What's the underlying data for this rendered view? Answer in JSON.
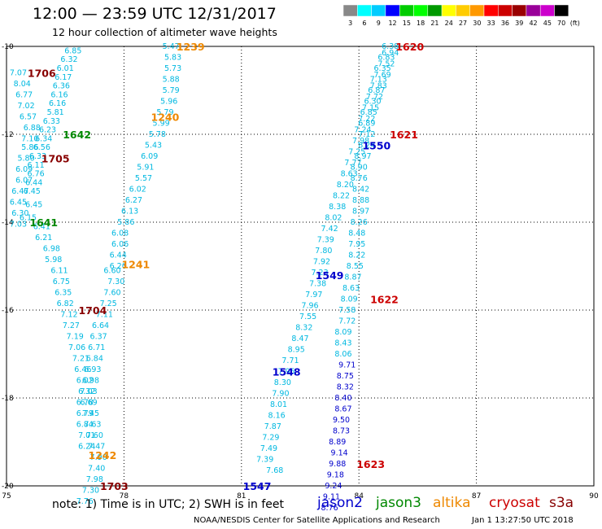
{
  "title": "12:00 — 23:59 UTC 12/31/2017",
  "subtitle": "12 hour collection of altimeter wave heights",
  "note": "note:  1) Time is in UTC;  2) SWH is in feet",
  "credit": "NOAA/NESDIS Center for Satellite Applications and Research",
  "timestamp": "Jan  1 13:27:50 UTC 2018",
  "missions": [
    {
      "name": "jason2",
      "color": "#0000cc"
    },
    {
      "name": "jason3",
      "color": "#008800"
    },
    {
      "name": "altika",
      "color": "#ee8800"
    },
    {
      "name": "cryosat",
      "color": "#cc0000"
    },
    {
      "name": "s3a",
      "color": "#880000"
    }
  ],
  "chart_data": {
    "type": "scatter",
    "xlim": [
      75,
      90
    ],
    "ylim": [
      -20,
      -10
    ],
    "x_ticks": [
      75,
      78,
      81,
      84,
      87,
      90
    ],
    "y_ticks": [
      -10,
      -12,
      -14,
      -16,
      -18,
      -20
    ],
    "x_tick_labels": [
      "75",
      "78",
      "81",
      "84",
      "87",
      "90"
    ],
    "y_tick_labels": [
      "-10",
      "-12",
      "-14",
      "-16",
      "-18",
      "-20"
    ],
    "color_scale": {
      "unit": "(ft)",
      "labels": [
        "3",
        "6",
        "9",
        "12",
        "15",
        "18",
        "21",
        "24",
        "27",
        "30",
        "33",
        "36",
        "39",
        "42",
        "45",
        "70"
      ],
      "colors": [
        "#888888",
        "#00ffff",
        "#00ccff",
        "#0000ff",
        "#00cc00",
        "#00ff00",
        "#009900",
        "#ffff00",
        "#ffcc00",
        "#ff9900",
        "#ff0000",
        "#cc0000",
        "#990000",
        "#990099",
        "#cc00cc",
        "#000000"
      ]
    },
    "series": [
      {
        "color": "#00b8e0",
        "points": [
          [
            76.7,
            -10.1,
            "6.85"
          ],
          [
            76.6,
            -10.3,
            "6.32"
          ],
          [
            76.5,
            -10.5,
            "6.01"
          ],
          [
            76.45,
            -10.7,
            "6.17"
          ],
          [
            76.4,
            -10.9,
            "6.36"
          ],
          [
            76.35,
            -11.1,
            "6.16"
          ],
          [
            76.3,
            -11.3,
            "6.16"
          ],
          [
            76.25,
            -11.5,
            "5.81"
          ],
          [
            76.15,
            -11.7,
            "6.33"
          ],
          [
            76.05,
            -11.9,
            "6.23"
          ],
          [
            75.95,
            -12.1,
            "6.34"
          ],
          [
            75.9,
            -12.3,
            "6.56"
          ],
          [
            75.8,
            -12.5,
            "6.33"
          ],
          [
            75.75,
            -12.7,
            "6.11"
          ],
          [
            75.75,
            -12.9,
            "6.76"
          ],
          [
            75.7,
            -13.1,
            "6.44"
          ],
          [
            75.65,
            -13.3,
            "6.45"
          ],
          [
            75.7,
            -13.6,
            "6.45"
          ],
          [
            75.55,
            -13.9,
            "6.15"
          ]
        ]
      },
      {
        "color": "#00b8e0",
        "points": [
          [
            75.3,
            -10.6,
            "7.07"
          ],
          [
            75.4,
            -10.85,
            "8.04"
          ],
          [
            75.45,
            -11.1,
            "6.77"
          ],
          [
            75.5,
            -11.35,
            "7.02"
          ],
          [
            75.55,
            -11.6,
            "6.57"
          ],
          [
            75.65,
            -11.85,
            "6.88"
          ],
          [
            75.6,
            -12.1,
            "7.10"
          ],
          [
            75.6,
            -12.3,
            "5.86"
          ],
          [
            75.5,
            -12.55,
            "5.80"
          ],
          [
            75.45,
            -12.8,
            "6.09"
          ],
          [
            75.45,
            -13.05,
            "6.07"
          ],
          [
            75.35,
            -13.3,
            "6.47"
          ],
          [
            75.3,
            -13.55,
            "6.45"
          ],
          [
            75.35,
            -13.8,
            "6.30"
          ],
          [
            75.3,
            -14.05,
            "7.03"
          ]
        ]
      },
      {
        "color": "#00b8e0",
        "points": [
          [
            75.9,
            -14.1,
            "6.41"
          ],
          [
            75.95,
            -14.35,
            "6.21"
          ],
          [
            76.15,
            -14.6,
            "6.98"
          ],
          [
            76.2,
            -14.85,
            "5.98"
          ],
          [
            76.35,
            -15.1,
            "6.11"
          ],
          [
            76.4,
            -15.35,
            "6.75"
          ],
          [
            76.45,
            -15.6,
            "6.35"
          ],
          [
            76.5,
            -15.85,
            "6.82"
          ],
          [
            76.6,
            -16.1,
            "7.12"
          ],
          [
            76.65,
            -16.35,
            "7.27"
          ],
          [
            76.75,
            -16.6,
            "7.19"
          ],
          [
            76.8,
            -16.85,
            "7.06"
          ],
          [
            76.9,
            -17.1,
            "7.21"
          ],
          [
            76.95,
            -17.35,
            "6.46"
          ],
          [
            77.0,
            -17.6,
            "6.02"
          ],
          [
            77.05,
            -17.85,
            "6.32"
          ],
          [
            77.1,
            -18.1,
            "6.69"
          ],
          [
            77.15,
            -18.35,
            "7.45"
          ],
          [
            77.2,
            -18.6,
            "7.63"
          ],
          [
            77.25,
            -18.85,
            "7.60"
          ],
          [
            77.3,
            -19.1,
            "7.47"
          ],
          [
            77.35,
            -19.35,
            "7.90"
          ],
          [
            77.3,
            -19.6,
            "7.40"
          ],
          [
            77.25,
            -19.85,
            "7.98"
          ],
          [
            77.15,
            -20.1,
            "7.30"
          ],
          [
            77.0,
            -20.35,
            "7.76"
          ]
        ]
      },
      {
        "color": "#00b8e0",
        "points": [
          [
            77.7,
            -15.1,
            "6.60"
          ],
          [
            77.8,
            -15.35,
            "7.30"
          ],
          [
            77.7,
            -15.6,
            "7.60"
          ],
          [
            77.6,
            -15.85,
            "7.25"
          ],
          [
            77.5,
            -16.1,
            "7.11"
          ],
          [
            77.4,
            -16.35,
            "6.64"
          ],
          [
            77.35,
            -16.6,
            "6.37"
          ],
          [
            77.3,
            -16.85,
            "6.71"
          ],
          [
            77.25,
            -17.1,
            "6.84"
          ],
          [
            77.2,
            -17.35,
            "6.93"
          ],
          [
            77.15,
            -17.6,
            "6.98"
          ],
          [
            77.1,
            -17.85,
            "7.03"
          ],
          [
            77.0,
            -18.1,
            "6.78"
          ],
          [
            77.0,
            -18.35,
            "6.79"
          ],
          [
            77.0,
            -18.6,
            "6.84"
          ],
          [
            77.05,
            -18.85,
            "7.01"
          ],
          [
            77.05,
            -19.1,
            "6.24"
          ]
        ]
      },
      {
        "color": "#00b8e0",
        "points": [
          [
            79.2,
            -10.0,
            "5.47"
          ],
          [
            79.25,
            -10.25,
            "5.83"
          ],
          [
            79.25,
            -10.5,
            "5.73"
          ],
          [
            79.2,
            -10.75,
            "5.88"
          ],
          [
            79.2,
            -11.0,
            "5.79"
          ],
          [
            79.15,
            -11.25,
            "5.96"
          ],
          [
            79.05,
            -11.5,
            "5.79"
          ],
          [
            78.95,
            -11.75,
            "5.99"
          ],
          [
            78.85,
            -12.0,
            "5.78"
          ],
          [
            78.75,
            -12.25,
            "5.43"
          ],
          [
            78.65,
            -12.5,
            "6.09"
          ],
          [
            78.55,
            -12.75,
            "5.91"
          ],
          [
            78.5,
            -13.0,
            "5.57"
          ],
          [
            78.35,
            -13.25,
            "6.02"
          ],
          [
            78.25,
            -13.5,
            "6.27"
          ],
          [
            78.15,
            -13.75,
            "6.13"
          ],
          [
            78.05,
            -14.0,
            "5.86"
          ],
          [
            77.9,
            -14.25,
            "6.08"
          ],
          [
            77.9,
            -14.5,
            "6.06"
          ],
          [
            77.85,
            -14.75,
            "6.44"
          ],
          [
            77.85,
            -15.0,
            "6.20"
          ]
        ]
      },
      {
        "color": "#00b8e0",
        "points": [
          [
            81.85,
            -19.65,
            "7.68"
          ],
          [
            81.6,
            -19.4,
            "7.39"
          ],
          [
            81.7,
            -19.15,
            "7.49"
          ],
          [
            81.75,
            -18.9,
            "7.29"
          ],
          [
            81.8,
            -18.65,
            "7.87"
          ],
          [
            81.9,
            -18.4,
            "8.16"
          ],
          [
            81.95,
            -18.15,
            "8.01"
          ],
          [
            82.0,
            -17.9,
            "7.90"
          ],
          [
            82.05,
            -17.65,
            "8.30"
          ],
          [
            82.15,
            -17.4,
            "7.95"
          ],
          [
            82.25,
            -17.15,
            "7.71"
          ],
          [
            82.4,
            -16.9,
            "8.95"
          ],
          [
            82.5,
            -16.65,
            "8.47"
          ],
          [
            82.6,
            -16.4,
            "8.32"
          ],
          [
            82.7,
            -16.15,
            "7.55"
          ],
          [
            82.75,
            -15.9,
            "7.96"
          ],
          [
            82.85,
            -15.65,
            "7.97"
          ],
          [
            82.95,
            -15.4,
            "7.38"
          ],
          [
            83.0,
            -15.15,
            "7.23"
          ],
          [
            83.05,
            -14.9,
            "7.92"
          ],
          [
            83.1,
            -14.65,
            "7.80"
          ],
          [
            83.15,
            -14.4,
            "7.39"
          ],
          [
            83.25,
            -14.15,
            "7.42"
          ],
          [
            83.35,
            -13.9,
            "8.02"
          ],
          [
            83.45,
            -13.65,
            "8.38"
          ],
          [
            83.55,
            -13.4,
            "8.22"
          ],
          [
            83.65,
            -13.15,
            "8.20"
          ],
          [
            83.75,
            -12.9,
            "8.63"
          ],
          [
            83.85,
            -12.65,
            "7.77"
          ],
          [
            83.95,
            -12.4,
            "7.25"
          ],
          [
            84.05,
            -12.15,
            "7.98"
          ],
          [
            84.1,
            -11.9,
            "7.24"
          ],
          [
            84.2,
            -11.65,
            "7.22"
          ],
          [
            84.3,
            -11.4,
            "7.15"
          ],
          [
            84.4,
            -11.15,
            "7.72"
          ],
          [
            84.5,
            -10.9,
            "7.83"
          ],
          [
            84.6,
            -10.65,
            "7.69"
          ],
          [
            84.7,
            -10.4,
            "7.52"
          ],
          [
            84.8,
            -10.15,
            "6.94"
          ]
        ]
      },
      {
        "color": "#00b8e0",
        "points": [
          [
            84.8,
            -10.0,
            "6.38"
          ],
          [
            84.7,
            -10.25,
            "6.83"
          ],
          [
            84.6,
            -10.5,
            "6.35"
          ],
          [
            84.5,
            -10.75,
            "7.13"
          ],
          [
            84.45,
            -11.0,
            "6.87"
          ],
          [
            84.35,
            -11.25,
            "6.30"
          ],
          [
            84.25,
            -11.5,
            "6.85"
          ],
          [
            84.2,
            -11.75,
            "6.89"
          ],
          [
            84.2,
            -12.0,
            "7.12"
          ],
          [
            84.2,
            -12.25,
            "8.24"
          ],
          [
            84.1,
            -12.5,
            "8.97"
          ],
          [
            84.0,
            -12.75,
            "8.90"
          ],
          [
            84.0,
            -13.0,
            "8.76"
          ],
          [
            84.05,
            -13.25,
            "8.42"
          ],
          [
            84.05,
            -13.5,
            "8.88"
          ],
          [
            84.05,
            -13.75,
            "8.97"
          ],
          [
            84.0,
            -14.0,
            "8.26"
          ],
          [
            83.95,
            -14.25,
            "8.48"
          ],
          [
            83.95,
            -14.5,
            "7.95"
          ],
          [
            83.95,
            -14.75,
            "8.22"
          ],
          [
            83.9,
            -15.0,
            "8.55"
          ],
          [
            83.85,
            -15.25,
            "8.87"
          ],
          [
            83.8,
            -15.5,
            "8.63"
          ],
          [
            83.75,
            -15.75,
            "8.09"
          ],
          [
            83.7,
            -16.0,
            "7.58"
          ],
          [
            83.7,
            -16.25,
            "7.72"
          ],
          [
            83.6,
            -16.5,
            "8.09"
          ],
          [
            83.6,
            -16.75,
            "8.43"
          ],
          [
            83.6,
            -17.0,
            "8.06"
          ]
        ]
      },
      {
        "color": "#0000cc",
        "points": [
          [
            83.7,
            -17.25,
            "9.71"
          ],
          [
            83.65,
            -17.5,
            "8.75"
          ],
          [
            83.65,
            -17.75,
            "8.32"
          ],
          [
            83.6,
            -18.0,
            "8.40"
          ],
          [
            83.6,
            -18.25,
            "8.67"
          ],
          [
            83.55,
            -18.5,
            "9.50"
          ],
          [
            83.55,
            -18.75,
            "8.73"
          ],
          [
            83.45,
            -19.0,
            "8.89"
          ],
          [
            83.5,
            -19.25,
            "9.14"
          ],
          [
            83.45,
            -19.5,
            "9.88"
          ],
          [
            83.4,
            -19.75,
            "9.18"
          ],
          [
            83.35,
            -20.0,
            "9.24"
          ],
          [
            83.3,
            -20.25,
            "9.11"
          ],
          [
            83.25,
            -20.5,
            "8.76"
          ]
        ]
      }
    ],
    "time_labels": [
      {
        "text": "1706",
        "x": 75.9,
        "y": -10.6,
        "color": "#880000"
      },
      {
        "text": "1642",
        "x": 76.8,
        "y": -12.0,
        "color": "#008800"
      },
      {
        "text": "1705",
        "x": 76.25,
        "y": -12.55,
        "color": "#880000"
      },
      {
        "text": "1641",
        "x": 75.95,
        "y": -14.0,
        "color": "#008800"
      },
      {
        "text": "1704",
        "x": 77.2,
        "y": -16.0,
        "color": "#880000"
      },
      {
        "text": "1242",
        "x": 77.45,
        "y": -19.3,
        "color": "#ee8800"
      },
      {
        "text": "1703",
        "x": 77.75,
        "y": -20.0,
        "color": "#880000"
      },
      {
        "text": "1239",
        "x": 79.7,
        "y": -10.0,
        "color": "#ee8800"
      },
      {
        "text": "1240",
        "x": 79.05,
        "y": -11.6,
        "color": "#ee8800"
      },
      {
        "text": "1241",
        "x": 78.3,
        "y": -14.95,
        "color": "#ee8800"
      },
      {
        "text": "1547",
        "x": 81.4,
        "y": -20.0,
        "color": "#0000cc"
      },
      {
        "text": "1548",
        "x": 82.15,
        "y": -17.4,
        "color": "#0000cc"
      },
      {
        "text": "1549",
        "x": 83.25,
        "y": -15.2,
        "color": "#0000cc"
      },
      {
        "text": "1550",
        "x": 84.45,
        "y": -12.25,
        "color": "#0000cc"
      },
      {
        "text": "1620",
        "x": 85.3,
        "y": -10.0,
        "color": "#cc0000"
      },
      {
        "text": "1621",
        "x": 85.15,
        "y": -12.0,
        "color": "#cc0000"
      },
      {
        "text": "1622",
        "x": 84.65,
        "y": -15.75,
        "color": "#cc0000"
      },
      {
        "text": "1623",
        "x": 84.3,
        "y": -19.5,
        "color": "#cc0000"
      }
    ]
  }
}
